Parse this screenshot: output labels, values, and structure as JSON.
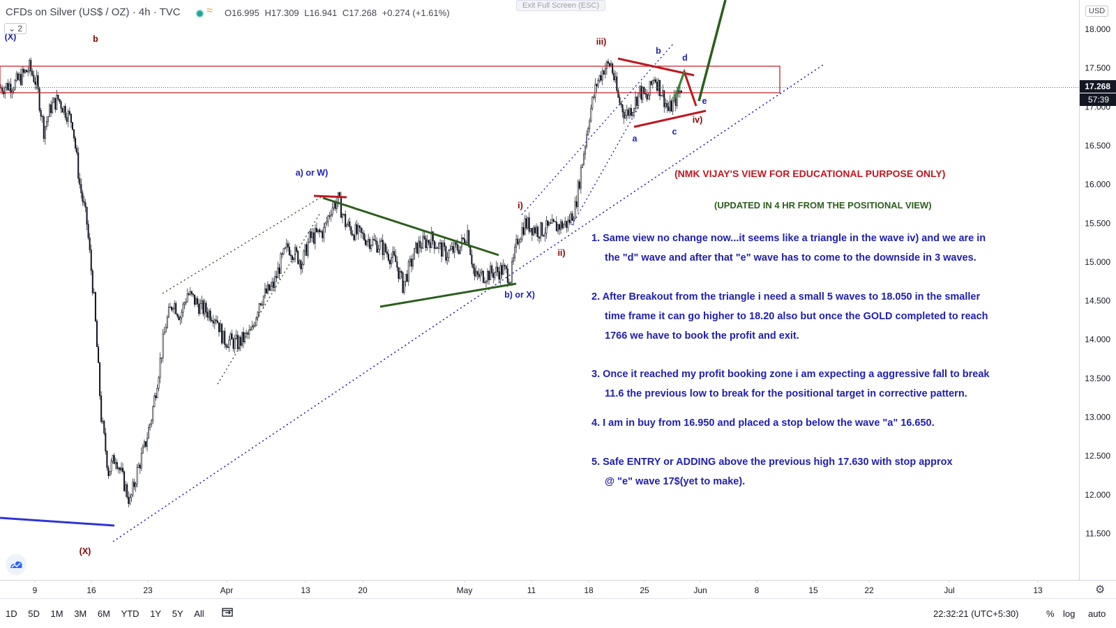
{
  "header": {
    "symbol": "CFDs on Silver (US$ / OZ) · 4h · TVC",
    "open": "O16.995",
    "high": "H17.309",
    "low": "L16.941",
    "close": "C17.268",
    "change": "+0.274 (+1.61%)",
    "exit_fullscreen": "Exit Full Screen (ESC)",
    "indicator_count": "⌄ 2",
    "currency": "USD"
  },
  "price_labels": {
    "last": "17.268",
    "countdown": "57:39"
  },
  "bottom": {
    "ranges": [
      "1D",
      "5D",
      "1M",
      "3M",
      "6M",
      "YTD",
      "1Y",
      "5Y",
      "All"
    ],
    "clock": "22:32:21 (UTC+5:30)",
    "percent": "%",
    "log": "log",
    "auto": "auto"
  },
  "colors": {
    "up": "#131722",
    "down": "#131722",
    "red": "#c0161f",
    "blue": "#1e22b0",
    "green": "#2b5e1b",
    "darkred": "#8b0000"
  },
  "chart_data": {
    "type": "candlestick",
    "title": "CFDs on Silver (US$ / OZ) · 4h · TVC",
    "ylim": [
      11.2,
      18.3
    ],
    "yticks": [
      18.0,
      17.5,
      17.0,
      16.5,
      16.0,
      15.5,
      15.0,
      14.5,
      14.0,
      13.5,
      13.0,
      12.5,
      12.0,
      11.5
    ],
    "ytick_labels": [
      "18.000",
      "17.500",
      "17.000",
      "16.500",
      "16.000",
      "15.500",
      "15.000",
      "14.500",
      "14.000",
      "13.500",
      "13.000",
      "12.500",
      "12.000",
      "11.500"
    ],
    "x_ticks": [
      "9",
      "16",
      "23",
      "Apr",
      "13",
      "20",
      "May",
      "11",
      "18",
      "25",
      "Jun",
      "8",
      "15",
      "22",
      "Jul",
      "13"
    ],
    "price_path": [
      [
        0,
        17.25
      ],
      [
        2,
        17.3
      ],
      [
        3,
        17.4
      ],
      [
        4,
        17.5
      ],
      [
        5,
        17.3
      ],
      [
        6,
        16.7
      ],
      [
        7,
        17.0
      ],
      [
        8,
        17.1
      ],
      [
        10,
        16.8
      ],
      [
        11,
        16.0
      ],
      [
        12,
        15.5
      ],
      [
        13,
        14.5
      ],
      [
        14,
        13.0
      ],
      [
        15,
        12.3
      ],
      [
        16,
        12.5
      ],
      [
        17,
        12.2
      ],
      [
        18,
        11.9
      ],
      [
        19,
        12.3
      ],
      [
        20,
        12.6
      ],
      [
        21,
        13.0
      ],
      [
        22,
        13.6
      ],
      [
        23,
        14.2
      ],
      [
        24,
        14.5
      ],
      [
        25,
        14.3
      ],
      [
        26,
        14.6
      ],
      [
        28,
        14.4
      ],
      [
        30,
        14.3
      ],
      [
        31,
        14.0
      ],
      [
        33,
        13.95
      ],
      [
        35,
        14.1
      ],
      [
        36,
        14.5
      ],
      [
        38,
        14.7
      ],
      [
        39,
        15.0
      ],
      [
        40,
        15.2
      ],
      [
        42,
        15.0
      ],
      [
        43,
        15.3
      ],
      [
        45,
        15.4
      ],
      [
        46,
        15.7
      ],
      [
        47,
        15.8
      ],
      [
        48,
        15.5
      ],
      [
        49,
        15.4
      ],
      [
        51,
        15.3
      ],
      [
        53,
        15.2
      ],
      [
        55,
        15.0
      ],
      [
        56,
        14.7
      ],
      [
        58,
        15.2
      ],
      [
        60,
        15.3
      ],
      [
        62,
        15.1
      ],
      [
        64,
        15.2
      ],
      [
        65,
        15.4
      ],
      [
        66,
        14.8
      ],
      [
        68,
        14.85
      ],
      [
        70,
        14.9
      ],
      [
        71,
        14.8
      ],
      [
        72,
        15.3
      ],
      [
        73,
        15.5
      ],
      [
        75,
        15.4
      ],
      [
        77,
        15.45
      ],
      [
        79,
        15.5
      ],
      [
        80,
        15.7
      ],
      [
        81,
        16.3
      ],
      [
        82,
        16.9
      ],
      [
        83,
        17.3
      ],
      [
        84,
        17.5
      ],
      [
        85,
        17.55
      ],
      [
        86,
        17.1
      ],
      [
        87,
        16.9
      ],
      [
        88,
        17.0
      ],
      [
        89,
        17.2
      ],
      [
        90,
        17.1
      ],
      [
        91,
        17.4
      ],
      [
        92,
        17.2
      ],
      [
        93,
        16.95
      ],
      [
        94,
        17.1
      ],
      [
        95,
        17.27
      ]
    ],
    "price_markers": [
      "16.950",
      "16.650",
      "17.630",
      "18.050",
      "18.20",
      "11.6",
      "1766",
      "17"
    ],
    "wave_labels": [
      {
        "text": "(X)",
        "color": "blue"
      },
      {
        "text": "b",
        "color": "red"
      },
      {
        "text": "a) or W)",
        "color": "blue"
      },
      {
        "text": "b) or X)",
        "color": "blue"
      },
      {
        "text": "i)",
        "color": "red"
      },
      {
        "text": "ii)",
        "color": "red"
      },
      {
        "text": "iii)",
        "color": "red"
      },
      {
        "text": "b",
        "color": "blue"
      },
      {
        "text": "d",
        "color": "blue"
      },
      {
        "text": "e",
        "color": "blue"
      },
      {
        "text": "iv)",
        "color": "red"
      },
      {
        "text": "a",
        "color": "blue"
      },
      {
        "text": "c",
        "color": "blue"
      },
      {
        "text": "(X)",
        "color": "red"
      }
    ],
    "annotations": {
      "title": "(NMK VIJAY'S VIEW FOR EDUCATIONAL PURPOSE ONLY)",
      "subtitle": "(UPDATED IN 4 HR FROM THE POSITIONAL VIEW)",
      "points": [
        "1. Same view no change now...it seems like a triangle in the wave iv) and we are in",
        "the \"d\" wave and after that \"e\" wave has to come to the downside in 3 waves.",
        "2. After Breakout from the  triangle i need a small 5 waves to 18.050 in the smaller",
        "time frame it can go higher to 18.20 also but once the GOLD completed to reach",
        "1766 we have to book the profit and exit.",
        "3. Once it reached my profit booking zone i am expecting a aggressive fall to break",
        "11.6 the previous low to break for the positional target in corrective pattern.",
        "4. I am in buy from 16.950 and placed a stop below the wave \"a\" 16.650.",
        "5. Safe ENTRY or ADDING above the previous high 17.630 with stop approx",
        "@ \"e\" wave 17$(yet to make)."
      ]
    }
  }
}
